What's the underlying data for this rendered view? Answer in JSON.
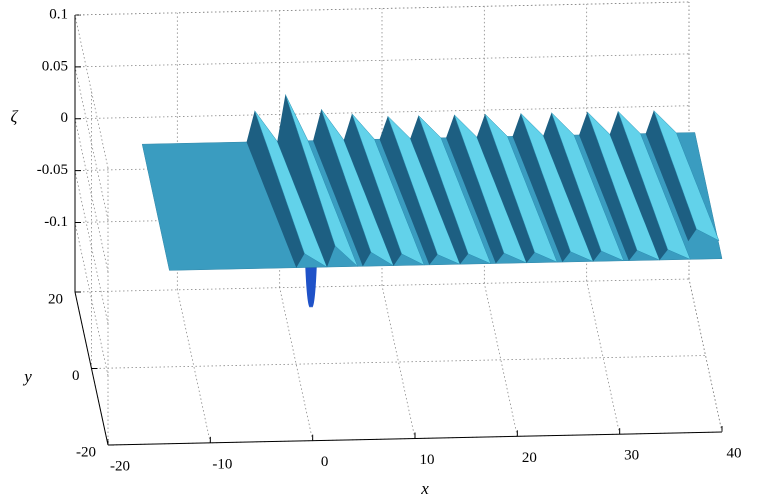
{
  "chart_data": {
    "type": "surface3d",
    "xlabel": "x",
    "ylabel": "y",
    "zlabel": "ζ",
    "xlim": [
      -20,
      40
    ],
    "ylim": [
      -20,
      20
    ],
    "zlim": [
      -0.167,
      0.1
    ],
    "xticks": [
      -20,
      -10,
      0,
      10,
      20,
      30,
      40
    ],
    "yticks": [
      -20,
      0,
      20
    ],
    "zticks": [
      -0.1,
      -0.05,
      0,
      0.05,
      0.1
    ],
    "grid": true,
    "surface": {
      "color": "#3a9cc0",
      "crest_color": "#62d2ea",
      "shade_color": "#1d5f82",
      "xlim": [
        -14,
        40
      ],
      "ylim": [
        -20,
        13
      ],
      "crest_x": [
        -3,
        0,
        3.5,
        6.5,
        10,
        13,
        16.5,
        19.5,
        23,
        26,
        29.5,
        32.5,
        36
      ],
      "crest_height": [
        0.03,
        0.045,
        0.03,
        0.025,
        0.022,
        0.022,
        0.022,
        0.022,
        0.022,
        0.022,
        0.022,
        0.022,
        0.022
      ],
      "trough_x": 0,
      "trough_height": -0.045,
      "trough_color": "#1f52c8"
    }
  }
}
